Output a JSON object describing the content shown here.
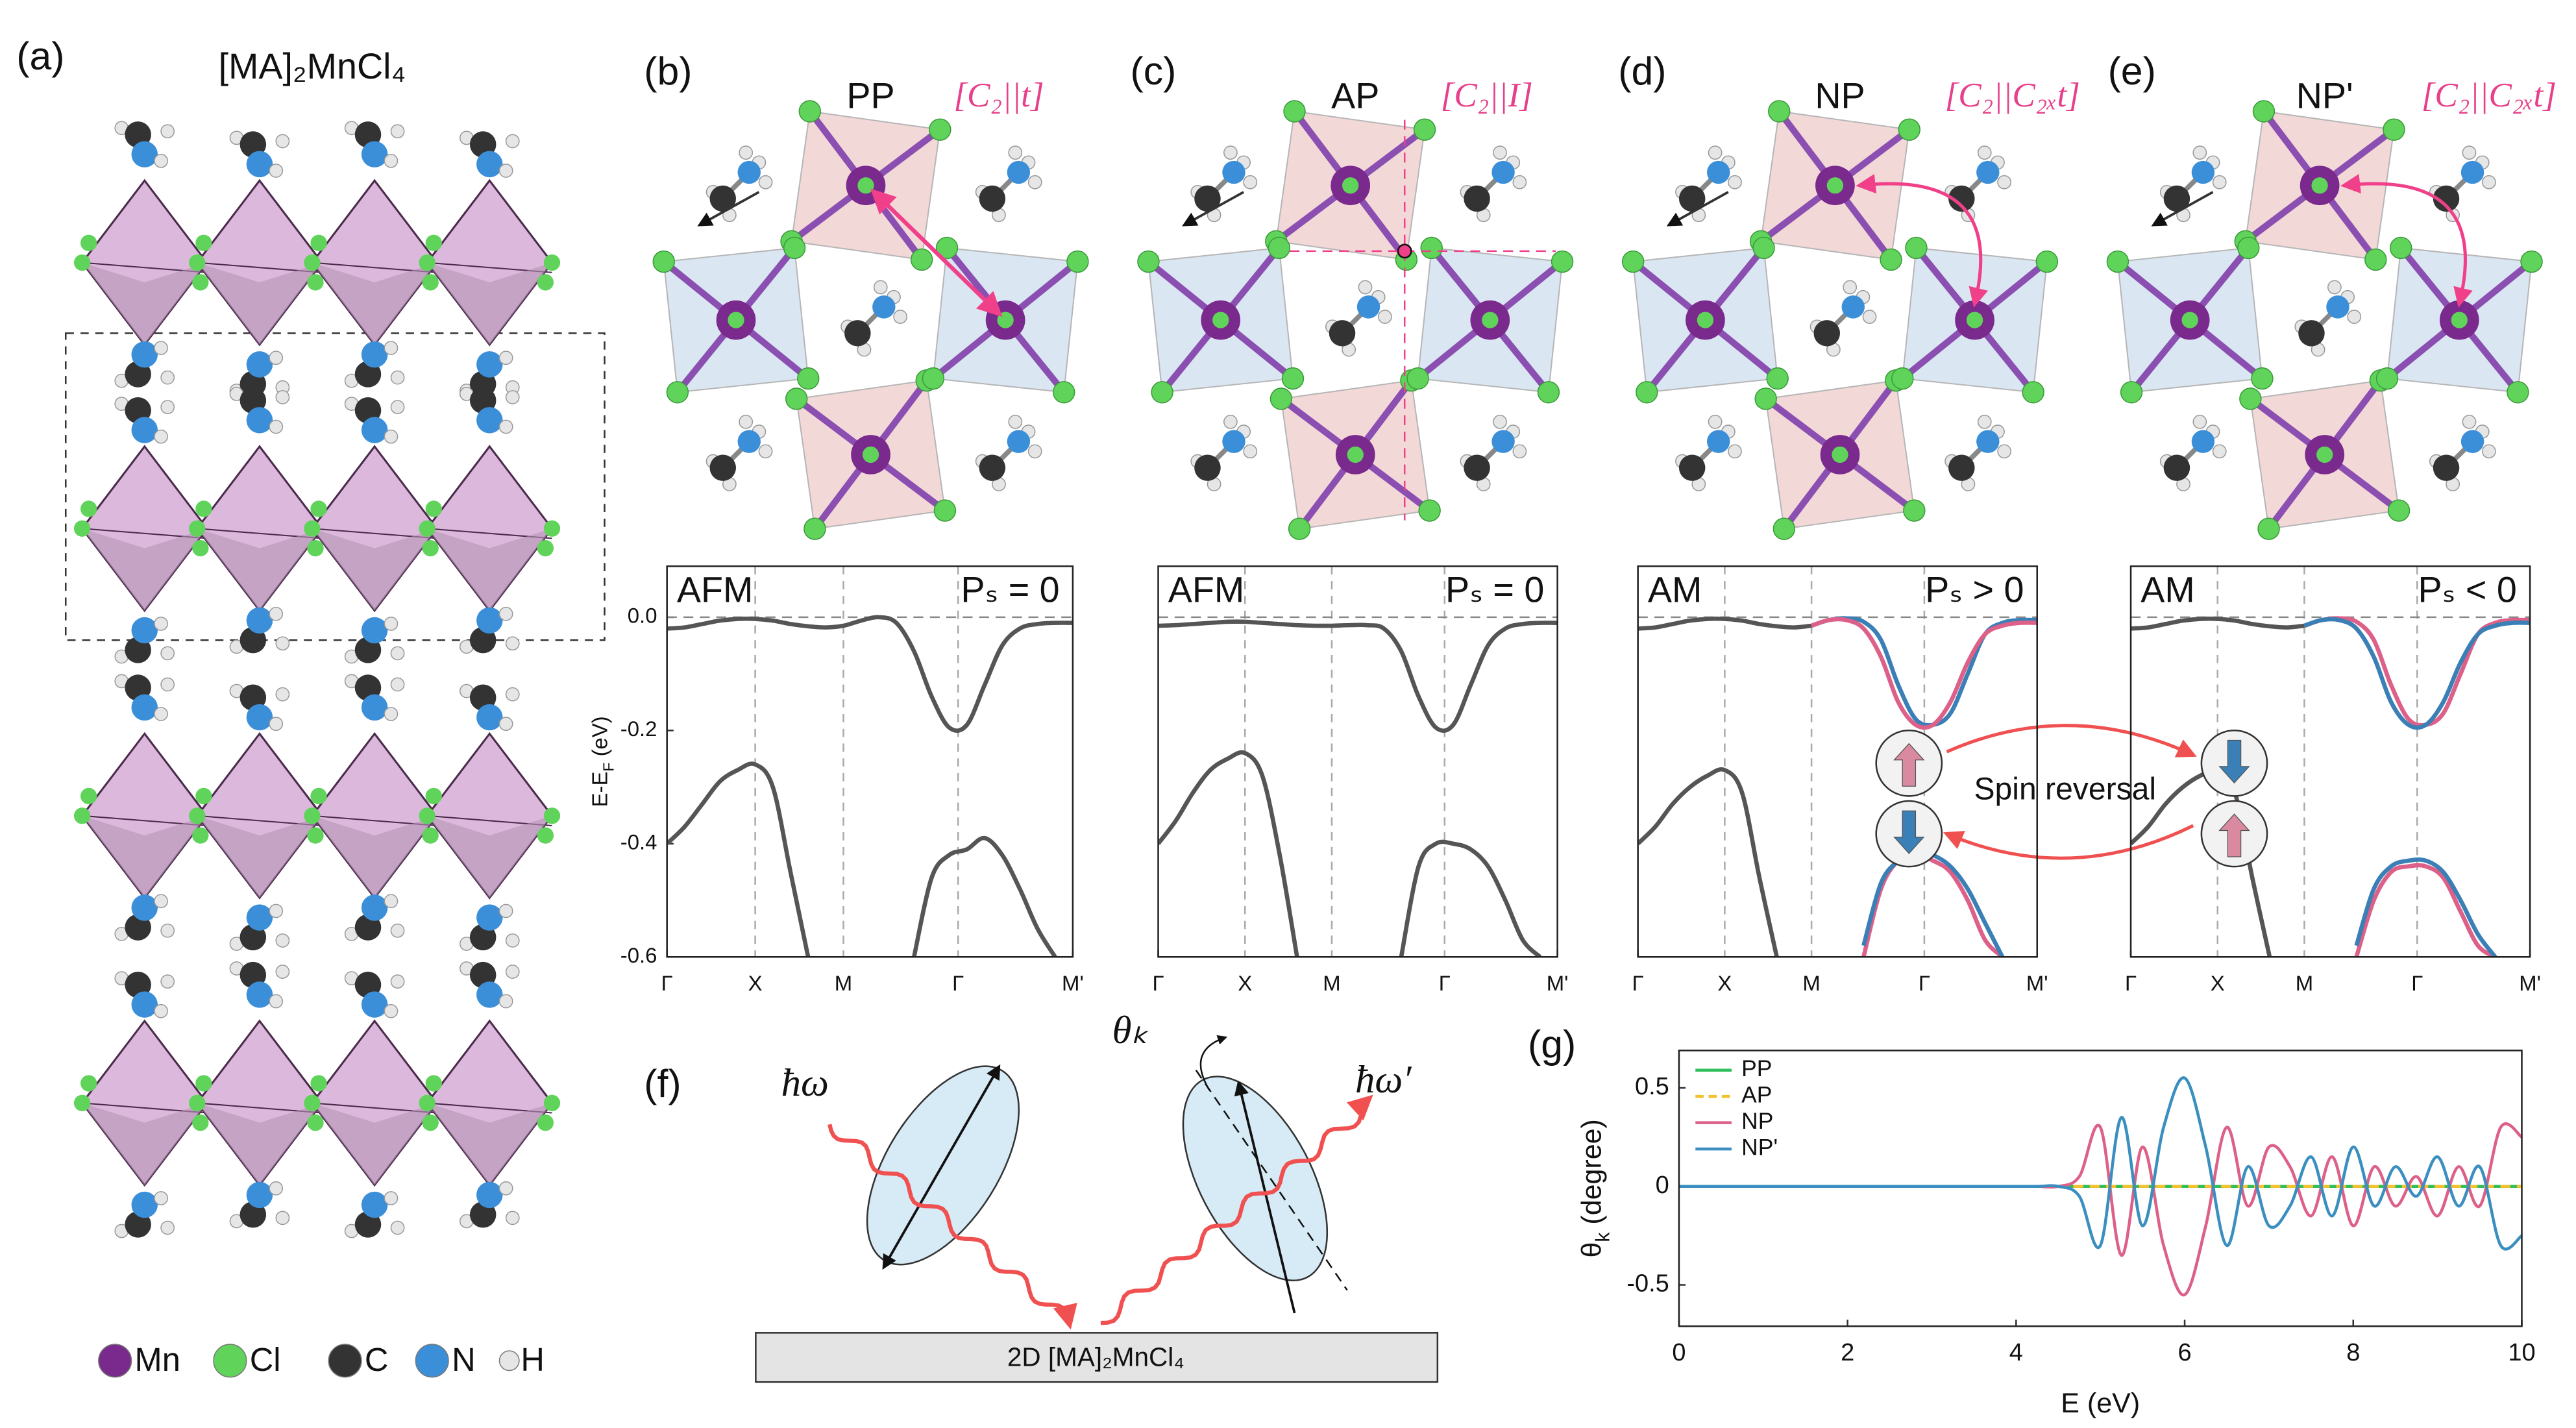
{
  "panel_labels": [
    "(a)",
    "(b)",
    "(c)",
    "(d)",
    "(e)",
    "(f)",
    "(g)"
  ],
  "structure": {
    "title": "[MA]₂MnCl₄",
    "atoms": [
      {
        "symbol": "Mn",
        "color": "#7a2a8c"
      },
      {
        "symbol": "Cl",
        "color": "#5fd35a"
      },
      {
        "symbol": "C",
        "color": "#333333"
      },
      {
        "symbol": "N",
        "color": "#3b8fd9"
      },
      {
        "symbol": "H",
        "color": "#e6e6e6"
      }
    ]
  },
  "phases": [
    {
      "name": "PP",
      "symmetry": "[C₂||t]"
    },
    {
      "name": "AP",
      "symmetry": "[C₂||I]"
    },
    {
      "name": "NP",
      "symmetry": "[C₂||C₂ₓt]"
    },
    {
      "name": "NP'",
      "symmetry": "[C₂||C₂ₓt]"
    }
  ],
  "spin_reversal": "Spin reversal",
  "optics": {
    "incident": "ħω",
    "reflected": "ħω′",
    "angle": "θₖ",
    "substrate": "2D [MA]₂MnCl₄"
  },
  "chart_data": [
    {
      "type": "band",
      "label": "AFM",
      "annotation": "Pₛ = 0",
      "ylabel": [
        "E-E",
        "F",
        " (eV)"
      ],
      "x": [
        0,
        0.2,
        0.4,
        0.6,
        0.8,
        1,
        1.2,
        1.4,
        1.6,
        1.8,
        2,
        2.2,
        2.4,
        2.6,
        2.8,
        3,
        3.2,
        3.4,
        3.6,
        3.8,
        4,
        4.2,
        4.4,
        4.6
      ],
      "xlim": [
        0,
        4.6
      ],
      "xticks": [
        {
          "value": 0,
          "label": "Γ"
        },
        {
          "value": 1,
          "label": "X"
        },
        {
          "value": 2,
          "label": "M"
        },
        {
          "value": 3.3,
          "label": "Γ"
        },
        {
          "value": 4.6,
          "label": "M'"
        }
      ],
      "ylim": [
        -0.6,
        0.09
      ],
      "yticks": [
        {
          "value": 0,
          "label": "0.0"
        },
        -0.2,
        -0.4,
        -0.6
      ],
      "hline": 0,
      "xgrid": true,
      "series": [
        {
          "color": "#555555",
          "values": [
            -0.02,
            -0.018,
            -0.012,
            -0.006,
            -0.003,
            -0.003,
            -0.006,
            -0.012,
            -0.016,
            -0.018,
            -0.015,
            -0.006,
            0,
            -0.01,
            -0.06,
            -0.14,
            -0.195,
            -0.19,
            -0.12,
            -0.05,
            -0.02,
            -0.012,
            -0.01,
            -0.01
          ]
        },
        {
          "color": "#555555",
          "values": [
            -0.4,
            -0.37,
            -0.33,
            -0.29,
            -0.27,
            -0.26,
            -0.3,
            -0.45,
            -0.6,
            null,
            null,
            null,
            null,
            null,
            null,
            null,
            null,
            null,
            null,
            null,
            null,
            null,
            null,
            null
          ]
        },
        {
          "color": "#555555",
          "values": [
            null,
            null,
            null,
            null,
            null,
            null,
            null,
            null,
            null,
            null,
            null,
            null,
            null,
            null,
            -0.6,
            -0.46,
            -0.42,
            -0.41,
            -0.39,
            -0.42,
            -0.48,
            -0.55,
            -0.6,
            null
          ]
        }
      ]
    },
    {
      "type": "band",
      "label": "AFM",
      "annotation": "Pₛ = 0",
      "x": [
        0,
        0.2,
        0.4,
        0.6,
        0.8,
        1,
        1.2,
        1.4,
        1.6,
        1.8,
        2,
        2.2,
        2.4,
        2.6,
        2.8,
        3,
        3.2,
        3.4,
        3.6,
        3.8,
        4,
        4.2,
        4.4,
        4.6
      ],
      "xlim": [
        0,
        4.6
      ],
      "xticks": [
        {
          "value": 0,
          "label": "Γ"
        },
        {
          "value": 1,
          "label": "X"
        },
        {
          "value": 2,
          "label": "M"
        },
        {
          "value": 3.3,
          "label": "Γ"
        },
        {
          "value": 4.6,
          "label": "M'"
        }
      ],
      "ylim": [
        -0.6,
        0.09
      ],
      "hline": 0,
      "xgrid": true,
      "series": [
        {
          "color": "#555555",
          "values": [
            -0.015,
            -0.014,
            -0.012,
            -0.01,
            -0.008,
            -0.008,
            -0.01,
            -0.012,
            -0.014,
            -0.015,
            -0.015,
            -0.014,
            -0.014,
            -0.02,
            -0.06,
            -0.14,
            -0.195,
            -0.19,
            -0.12,
            -0.05,
            -0.02,
            -0.012,
            -0.01,
            -0.01
          ]
        },
        {
          "color": "#555555",
          "values": [
            -0.4,
            -0.36,
            -0.31,
            -0.27,
            -0.25,
            -0.24,
            -0.28,
            -0.42,
            -0.6,
            null,
            null,
            null,
            null,
            null,
            null,
            null,
            null,
            null,
            null,
            null,
            null,
            null,
            null,
            null
          ]
        },
        {
          "color": "#555555",
          "values": [
            null,
            null,
            null,
            null,
            null,
            null,
            null,
            null,
            null,
            null,
            null,
            null,
            null,
            null,
            -0.6,
            -0.44,
            -0.4,
            -0.4,
            -0.41,
            -0.44,
            -0.5,
            -0.57,
            -0.6,
            null
          ]
        }
      ]
    },
    {
      "type": "band",
      "label": "AM",
      "annotation": "Pₛ > 0",
      "x": [
        0,
        0.2,
        0.4,
        0.6,
        0.8,
        1,
        1.2,
        1.4,
        1.6,
        1.8,
        2,
        2.2,
        2.4,
        2.6,
        2.8,
        3,
        3.2,
        3.4,
        3.6,
        3.8,
        4,
        4.2,
        4.4,
        4.6
      ],
      "xlim": [
        0,
        4.6
      ],
      "xticks": [
        {
          "value": 0,
          "label": "Γ"
        },
        {
          "value": 1,
          "label": "X"
        },
        {
          "value": 2,
          "label": "M"
        },
        {
          "value": 3.3,
          "label": "Γ"
        },
        {
          "value": 4.6,
          "label": "M'"
        }
      ],
      "ylim": [
        -0.6,
        0.09
      ],
      "hline": 0,
      "xgrid": true,
      "series": [
        {
          "color": "#555555",
          "values": [
            -0.02,
            -0.018,
            -0.012,
            -0.006,
            -0.003,
            -0.003,
            -0.006,
            -0.012,
            -0.016,
            -0.018,
            -0.015,
            null,
            null,
            null,
            null,
            null,
            null,
            null,
            null,
            null,
            null,
            null,
            null,
            null
          ]
        },
        {
          "color": "#555555",
          "values": [
            -0.4,
            -0.37,
            -0.33,
            -0.3,
            -0.28,
            -0.27,
            -0.31,
            -0.46,
            -0.6,
            null,
            null,
            null,
            null,
            null,
            null,
            null,
            null,
            null,
            null,
            null,
            null,
            null,
            null,
            null
          ]
        },
        {
          "color": "#3a7fb5",
          "values": [
            null,
            null,
            null,
            null,
            null,
            null,
            null,
            null,
            null,
            null,
            -0.015,
            -0.005,
            -0.002,
            -0.008,
            -0.04,
            -0.12,
            -0.18,
            -0.19,
            -0.17,
            -0.1,
            -0.03,
            -0.01,
            -0.005,
            -0.005
          ]
        },
        {
          "color": "#dc6088",
          "values": [
            null,
            null,
            null,
            null,
            null,
            null,
            null,
            null,
            null,
            null,
            -0.015,
            -0.005,
            -0.005,
            -0.02,
            -0.07,
            -0.15,
            -0.19,
            -0.19,
            -0.15,
            -0.08,
            -0.03,
            -0.015,
            -0.01,
            -0.01
          ]
        },
        {
          "color": "#dc6088",
          "values": [
            null,
            null,
            null,
            null,
            null,
            null,
            null,
            null,
            null,
            null,
            null,
            null,
            null,
            -0.6,
            -0.48,
            -0.43,
            -0.42,
            -0.43,
            -0.45,
            -0.5,
            -0.57,
            -0.6,
            null,
            null
          ]
        },
        {
          "color": "#3a7fb5",
          "values": [
            null,
            null,
            null,
            null,
            null,
            null,
            null,
            null,
            null,
            null,
            null,
            null,
            null,
            -0.58,
            -0.47,
            -0.43,
            -0.41,
            -0.42,
            -0.44,
            -0.48,
            -0.54,
            -0.6,
            null,
            null
          ]
        }
      ]
    },
    {
      "type": "band",
      "label": "AM",
      "annotation": "Pₛ < 0",
      "x": [
        0,
        0.2,
        0.4,
        0.6,
        0.8,
        1,
        1.2,
        1.4,
        1.6,
        1.8,
        2,
        2.2,
        2.4,
        2.6,
        2.8,
        3,
        3.2,
        3.4,
        3.6,
        3.8,
        4,
        4.2,
        4.4,
        4.6
      ],
      "xlim": [
        0,
        4.6
      ],
      "xticks": [
        {
          "value": 0,
          "label": "Γ"
        },
        {
          "value": 1,
          "label": "X"
        },
        {
          "value": 2,
          "label": "M"
        },
        {
          "value": 3.3,
          "label": "Γ"
        },
        {
          "value": 4.6,
          "label": "M'"
        }
      ],
      "ylim": [
        -0.6,
        0.09
      ],
      "hline": 0,
      "xgrid": true,
      "series": [
        {
          "color": "#555555",
          "values": [
            -0.02,
            -0.018,
            -0.012,
            -0.006,
            -0.003,
            -0.003,
            -0.006,
            -0.012,
            -0.016,
            -0.018,
            -0.015,
            null,
            null,
            null,
            null,
            null,
            null,
            null,
            null,
            null,
            null,
            null,
            null,
            null
          ]
        },
        {
          "color": "#555555",
          "values": [
            -0.4,
            -0.37,
            -0.33,
            -0.3,
            -0.28,
            -0.27,
            -0.31,
            -0.46,
            -0.6,
            null,
            null,
            null,
            null,
            null,
            null,
            null,
            null,
            null,
            null,
            null,
            null,
            null,
            null,
            null
          ]
        },
        {
          "color": "#dc6088",
          "values": [
            null,
            null,
            null,
            null,
            null,
            null,
            null,
            null,
            null,
            null,
            -0.015,
            -0.005,
            -0.002,
            -0.008,
            -0.04,
            -0.12,
            -0.18,
            -0.19,
            -0.17,
            -0.1,
            -0.03,
            -0.01,
            -0.005,
            -0.005
          ]
        },
        {
          "color": "#3a7fb5",
          "values": [
            null,
            null,
            null,
            null,
            null,
            null,
            null,
            null,
            null,
            null,
            -0.015,
            -0.005,
            -0.005,
            -0.02,
            -0.07,
            -0.15,
            -0.19,
            -0.19,
            -0.15,
            -0.08,
            -0.03,
            -0.015,
            -0.01,
            -0.01
          ]
        },
        {
          "color": "#dc6088",
          "values": [
            null,
            null,
            null,
            null,
            null,
            null,
            null,
            null,
            null,
            null,
            null,
            null,
            null,
            -0.6,
            -0.5,
            -0.45,
            -0.44,
            -0.44,
            -0.46,
            -0.52,
            -0.58,
            -0.6,
            null,
            null
          ]
        },
        {
          "color": "#3a7fb5",
          "values": [
            null,
            null,
            null,
            null,
            null,
            null,
            null,
            null,
            null,
            null,
            null,
            null,
            null,
            -0.58,
            -0.48,
            -0.44,
            -0.43,
            -0.43,
            -0.45,
            -0.5,
            -0.56,
            -0.6,
            null,
            null
          ]
        }
      ]
    },
    {
      "type": "line",
      "xlabel": "E (eV)",
      "ylabel": [
        "θ",
        "k",
        " (degree)"
      ],
      "legend": "upper left",
      "x": [
        0,
        0.25,
        0.5,
        0.75,
        1,
        1.25,
        1.5,
        1.75,
        2,
        2.25,
        2.5,
        2.75,
        3,
        3.25,
        3.5,
        3.75,
        4,
        4.25,
        4.5,
        4.75,
        5,
        5.25,
        5.5,
        5.75,
        6,
        6.25,
        6.5,
        6.75,
        7,
        7.25,
        7.5,
        7.75,
        8,
        8.25,
        8.5,
        8.75,
        9,
        9.25,
        9.5,
        9.75,
        10
      ],
      "xlim": [
        0,
        10
      ],
      "xticks": [
        0,
        2,
        4,
        6,
        8,
        10
      ],
      "ylim": [
        -0.71,
        0.69
      ],
      "yticks": [
        -0.5,
        0,
        0.5
      ],
      "series": [
        {
          "name": "PP",
          "color": "#2fbf5a",
          "style": "solid",
          "values": [
            0,
            0,
            0,
            0,
            0,
            0,
            0,
            0,
            0,
            0,
            0,
            0,
            0,
            0,
            0,
            0,
            0,
            0,
            0,
            0,
            0,
            0,
            0,
            0,
            0,
            0,
            0,
            0,
            0,
            0,
            0,
            0,
            0,
            0,
            0,
            0,
            0,
            0,
            0,
            0,
            0
          ]
        },
        {
          "name": "AP",
          "color": "#f2c12e",
          "style": "dashed",
          "values": [
            0,
            0,
            0,
            0,
            0,
            0,
            0,
            0,
            0,
            0,
            0,
            0,
            0,
            0,
            0,
            0,
            0,
            0,
            0,
            0,
            0,
            0,
            0,
            0,
            0,
            0,
            0,
            0,
            0,
            0,
            0,
            0,
            0,
            0,
            0,
            0,
            0,
            0,
            0,
            0,
            0
          ]
        },
        {
          "name": "NP",
          "color": "#dc6088",
          "style": "solid",
          "values": [
            0,
            0,
            0,
            0,
            0,
            0,
            0,
            0,
            0,
            0,
            0,
            0,
            0,
            0,
            0,
            0,
            0,
            0,
            0,
            0.05,
            0.3,
            -0.35,
            0.2,
            -0.3,
            -0.55,
            -0.2,
            0.3,
            -0.1,
            0.2,
            0.1,
            -0.15,
            0.15,
            -0.2,
            0.1,
            -0.1,
            0.05,
            -0.15,
            0.1,
            -0.1,
            0.3,
            0.25
          ]
        },
        {
          "name": "NP'",
          "color": "#3a8fc0",
          "style": "solid",
          "values": [
            0,
            0,
            0,
            0,
            0,
            0,
            0,
            0,
            0,
            0,
            0,
            0,
            0,
            0,
            0,
            0,
            0,
            0,
            0,
            -0.05,
            -0.3,
            0.35,
            -0.2,
            0.3,
            0.55,
            0.2,
            -0.3,
            0.1,
            -0.2,
            -0.1,
            0.15,
            -0.15,
            0.2,
            -0.1,
            0.1,
            -0.05,
            0.15,
            -0.1,
            0.1,
            -0.3,
            -0.25
          ]
        }
      ]
    }
  ]
}
